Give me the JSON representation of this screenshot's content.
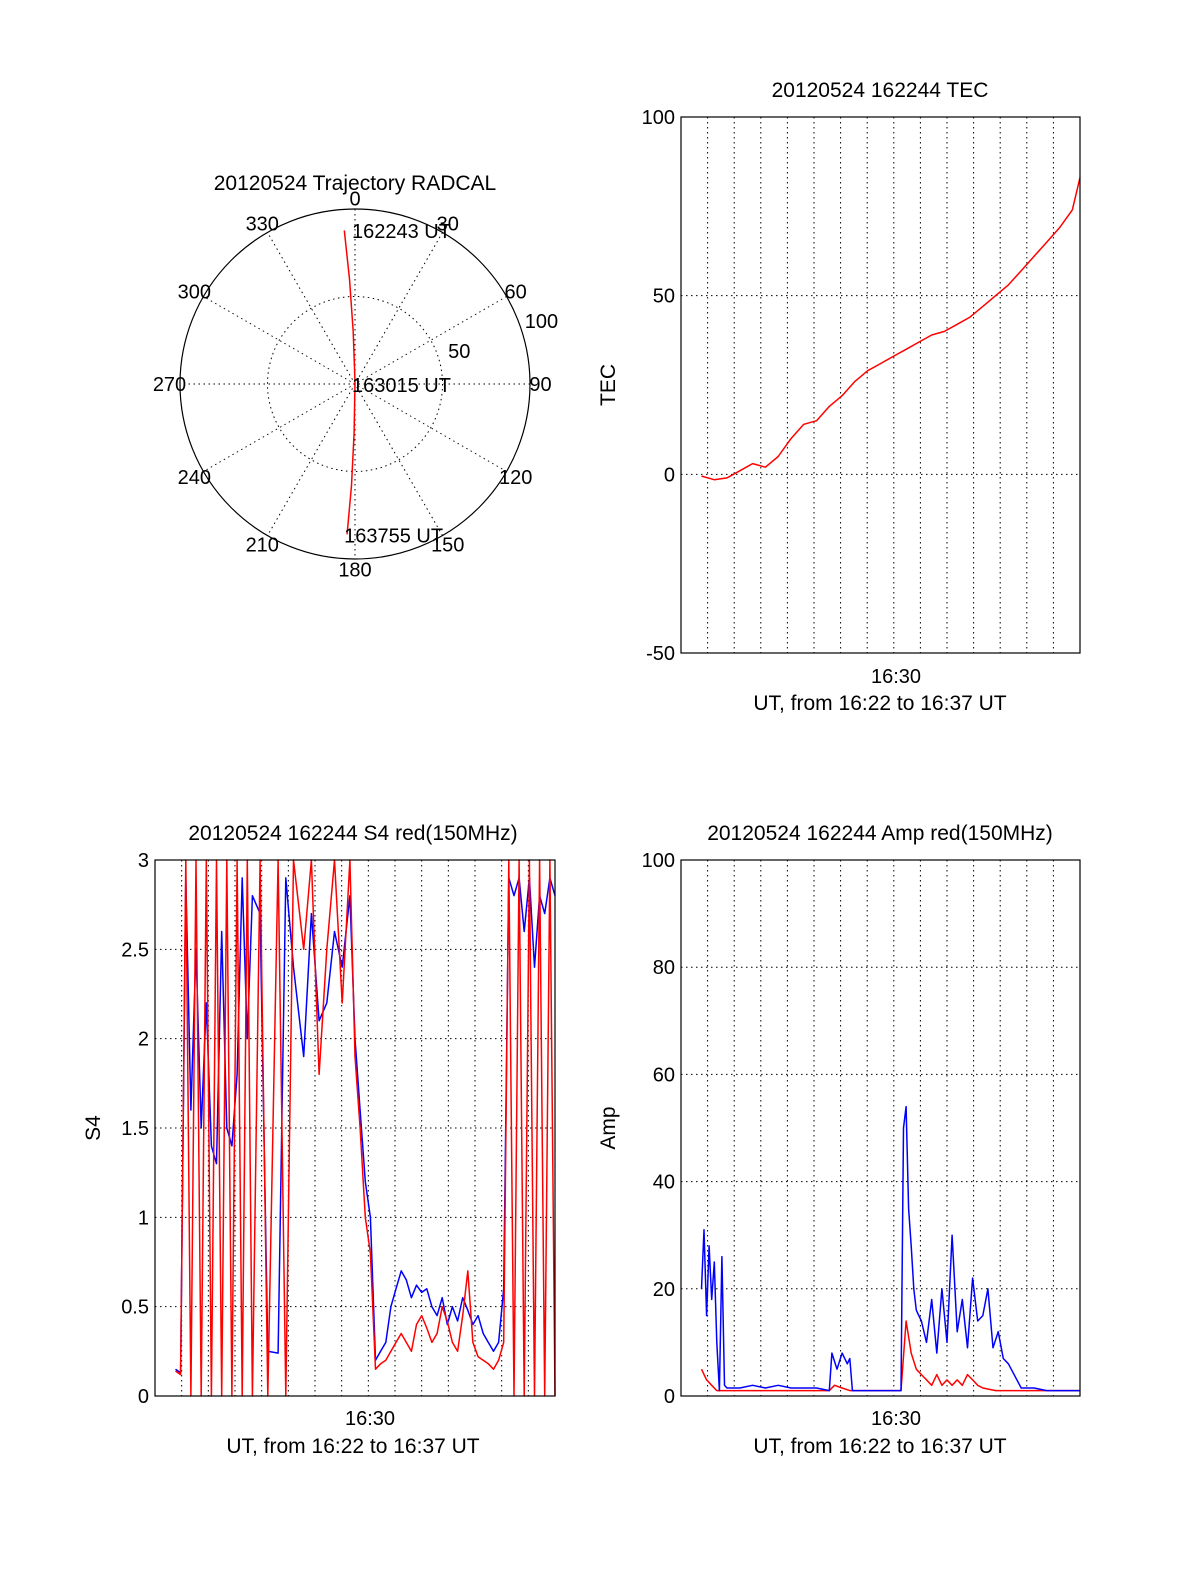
{
  "chart_data": [
    {
      "id": "polar",
      "type": "scatter",
      "coordinate_system": "polar",
      "title": "20120524 Trajectory RADCAL",
      "azimuth_labels": [
        "0",
        "30",
        "60",
        "90",
        "120",
        "150",
        "180",
        "210",
        "240",
        "270",
        "300",
        "330"
      ],
      "radius_labels": [
        "50",
        "100"
      ],
      "rlim": [
        0,
        100
      ],
      "series": [
        {
          "color": "#ff0000",
          "points": [
            {
              "az": 356,
              "r": 88
            },
            {
              "az": 357,
              "r": 60
            },
            {
              "az": 358,
              "r": 30
            },
            {
              "az": 0,
              "r": 1
            },
            {
              "az": 181,
              "r": 28
            },
            {
              "az": 182,
              "r": 58
            },
            {
              "az": 183,
              "r": 86
            }
          ]
        }
      ],
      "annotations": [
        {
          "text": "162243 UT",
          "az": 360,
          "r": 88
        },
        {
          "text": "163015 UT",
          "az": 0,
          "r": 0
        },
        {
          "text": "163755 UT",
          "az": 183,
          "r": 86
        }
      ]
    },
    {
      "id": "tec",
      "type": "line",
      "title": "20120524 162244 TEC",
      "ylabel": "TEC",
      "xlabel": "UT, from 16:22 to 16:37 UT",
      "x_ticks": [
        "16:30"
      ],
      "y_ticks": [
        "-50",
        "0",
        "50",
        "100"
      ],
      "xlim_minutes": [
        22.2,
        37.8
      ],
      "ylim": [
        -50,
        100
      ],
      "grid": true,
      "series": [
        {
          "color": "#ff0000",
          "x_minutes": [
            23.0,
            23.5,
            24.0,
            24.5,
            25.0,
            25.5,
            26.0,
            26.5,
            27.0,
            27.5,
            28.0,
            28.5,
            29.0,
            29.5,
            30.0,
            30.5,
            31.0,
            31.5,
            32.0,
            32.5,
            33.0,
            33.5,
            34.0,
            34.5,
            35.0,
            35.5,
            36.0,
            36.5,
            37.0,
            37.5,
            37.8
          ],
          "values": [
            -0.5,
            -1.5,
            -1,
            1,
            3,
            2,
            5,
            10,
            14,
            15,
            19,
            22,
            26,
            29,
            31,
            33,
            35,
            37,
            39,
            40,
            42,
            44,
            47,
            50,
            53,
            57,
            61,
            65,
            69,
            74,
            83
          ]
        }
      ]
    },
    {
      "id": "s4",
      "type": "line",
      "title": "20120524 162244 S4 red(150MHz)",
      "ylabel": "S4",
      "xlabel": "UT, from 16:22 to 16:37 UT",
      "x_ticks": [
        "16:30"
      ],
      "y_ticks": [
        "0",
        "0.5",
        "1",
        "1.5",
        "2",
        "2.5",
        "3"
      ],
      "xlim_minutes": [
        22.2,
        37.8
      ],
      "ylim": [
        0,
        3
      ],
      "grid": true,
      "series": [
        {
          "color": "#0000ff",
          "x_minutes": [
            23.0,
            23.2,
            23.4,
            23.6,
            23.8,
            24.0,
            24.2,
            24.4,
            24.6,
            24.8,
            25.0,
            25.2,
            25.4,
            25.6,
            25.8,
            26.0,
            26.3,
            26.6,
            27.0,
            27.3,
            27.6,
            28.0,
            28.3,
            28.6,
            28.9,
            29.2,
            29.5,
            29.8,
            30.0,
            30.2,
            30.4,
            30.6,
            30.8,
            31.0,
            31.2,
            31.4,
            31.6,
            31.8,
            32.0,
            32.2,
            32.4,
            32.6,
            32.8,
            33.0,
            33.2,
            33.4,
            33.6,
            33.8,
            34.0,
            34.2,
            34.4,
            34.6,
            34.8,
            35.0,
            35.2,
            35.4,
            35.6,
            35.8,
            36.0,
            36.2,
            36.4,
            36.6,
            36.8,
            37.0,
            37.2,
            37.4,
            37.6,
            37.8
          ],
          "values": [
            0.15,
            0.13,
            2.9,
            1.6,
            2.5,
            1.5,
            2.2,
            1.4,
            1.3,
            2.6,
            1.5,
            1.4,
            1.8,
            2.9,
            2.0,
            2.8,
            2.7,
            0.25,
            0.24,
            2.9,
            2.4,
            1.9,
            2.7,
            2.1,
            2.2,
            2.6,
            2.4,
            2.8,
            2.0,
            1.6,
            1.2,
            1.0,
            0.2,
            0.25,
            0.3,
            0.5,
            0.6,
            0.7,
            0.65,
            0.55,
            0.62,
            0.58,
            0.6,
            0.5,
            0.45,
            0.55,
            0.4,
            0.5,
            0.42,
            0.55,
            0.48,
            0.4,
            0.45,
            0.35,
            0.3,
            0.25,
            0.3,
            0.6,
            2.9,
            2.8,
            2.9,
            2.6,
            2.9,
            2.4,
            2.8,
            2.7,
            2.9,
            2.8
          ]
        },
        {
          "color": "#ff0000",
          "x_minutes": [
            23.0,
            23.2,
            23.4,
            23.6,
            23.8,
            24.0,
            24.2,
            24.4,
            24.6,
            24.8,
            25.0,
            25.2,
            25.4,
            25.6,
            25.8,
            26.0,
            26.3,
            26.6,
            27.0,
            27.3,
            27.6,
            28.0,
            28.3,
            28.6,
            28.9,
            29.2,
            29.5,
            29.8,
            30.0,
            30.2,
            30.4,
            30.6,
            30.8,
            31.0,
            31.2,
            31.4,
            31.6,
            31.8,
            32.0,
            32.2,
            32.4,
            32.6,
            32.8,
            33.0,
            33.2,
            33.4,
            33.6,
            33.8,
            34.0,
            34.2,
            34.4,
            34.6,
            34.8,
            35.0,
            35.2,
            35.4,
            35.6,
            35.8,
            36.0,
            36.2,
            36.4,
            36.6,
            36.8,
            37.0,
            37.2,
            37.4,
            37.6,
            37.8
          ],
          "values": [
            0.14,
            0.12,
            3.0,
            0.0,
            3.0,
            0.0,
            3.0,
            0.0,
            3.0,
            0.0,
            3.0,
            0.0,
            3.0,
            0.0,
            3.0,
            0.0,
            3.0,
            0.0,
            3.0,
            0.0,
            3.0,
            2.5,
            3.0,
            1.8,
            2.5,
            3.0,
            2.2,
            3.0,
            1.9,
            1.5,
            1.0,
            0.8,
            0.15,
            0.18,
            0.2,
            0.25,
            0.3,
            0.35,
            0.3,
            0.25,
            0.4,
            0.45,
            0.38,
            0.3,
            0.35,
            0.5,
            0.42,
            0.3,
            0.25,
            0.45,
            0.7,
            0.3,
            0.22,
            0.2,
            0.18,
            0.15,
            0.2,
            0.3,
            3.0,
            0.0,
            3.0,
            0.0,
            3.0,
            0.0,
            3.0,
            0.0,
            3.0,
            0.0
          ]
        }
      ]
    },
    {
      "id": "amp",
      "type": "line",
      "title": "20120524 162244 Amp red(150MHz)",
      "ylabel": "Amp",
      "xlabel": "UT, from 16:22 to 16:37 UT",
      "x_ticks": [
        "16:30"
      ],
      "y_ticks": [
        "0",
        "20",
        "40",
        "60",
        "80",
        "100"
      ],
      "xlim_minutes": [
        22.2,
        37.8
      ],
      "ylim": [
        0,
        100
      ],
      "grid": true,
      "series": [
        {
          "color": "#ff0000",
          "x_minutes": [
            23.0,
            23.2,
            23.4,
            23.6,
            24.0,
            24.5,
            25.0,
            26.0,
            27.0,
            28.0,
            28.2,
            28.5,
            28.8,
            29.5,
            30.0,
            30.5,
            30.8,
            31.0,
            31.2,
            31.4,
            31.6,
            31.8,
            32.0,
            32.2,
            32.4,
            32.6,
            32.8,
            33.0,
            33.2,
            33.4,
            33.6,
            33.8,
            34.0,
            34.5,
            35.0,
            35.5,
            36.0,
            36.5,
            37.0,
            37.5,
            37.8
          ],
          "values": [
            5,
            3,
            2,
            1,
            1,
            1,
            1,
            1,
            1,
            1,
            2,
            1.5,
            1,
            1,
            1,
            1,
            1,
            14,
            8,
            5,
            4,
            3,
            2,
            4,
            2,
            3,
            2,
            3,
            2,
            4,
            3,
            2,
            1.5,
            1,
            1,
            1,
            1,
            1,
            1,
            1,
            1
          ]
        },
        {
          "color": "#0000ff",
          "x_minutes": [
            23.0,
            23.1,
            23.2,
            23.3,
            23.4,
            23.5,
            23.6,
            23.7,
            23.8,
            23.9,
            24.0,
            24.5,
            25.0,
            25.5,
            26.0,
            26.5,
            27.0,
            27.5,
            28.0,
            28.1,
            28.3,
            28.5,
            28.7,
            28.8,
            28.9,
            29.5,
            30.0,
            30.5,
            30.8,
            30.9,
            31.0,
            31.1,
            31.2,
            31.3,
            31.4,
            31.6,
            31.8,
            32.0,
            32.2,
            32.4,
            32.6,
            32.8,
            33.0,
            33.2,
            33.4,
            33.6,
            33.8,
            34.0,
            34.2,
            34.4,
            34.6,
            34.8,
            35.0,
            35.5,
            36.0,
            36.5,
            37.0,
            37.5,
            37.8
          ],
          "values": [
            20,
            31,
            15,
            28,
            18,
            25,
            10,
            1,
            26,
            2,
            1.5,
            1.5,
            2,
            1.5,
            2,
            1.5,
            1.5,
            1.5,
            1,
            8,
            5,
            8,
            6,
            7,
            1,
            1,
            1,
            1,
            1,
            50,
            54,
            35,
            28,
            20,
            16,
            14,
            10,
            18,
            8,
            20,
            10,
            30,
            12,
            18,
            9,
            22,
            14,
            15,
            20,
            9,
            12,
            7,
            6,
            1.5,
            1.5,
            1,
            1,
            1,
            1
          ]
        }
      ]
    }
  ]
}
